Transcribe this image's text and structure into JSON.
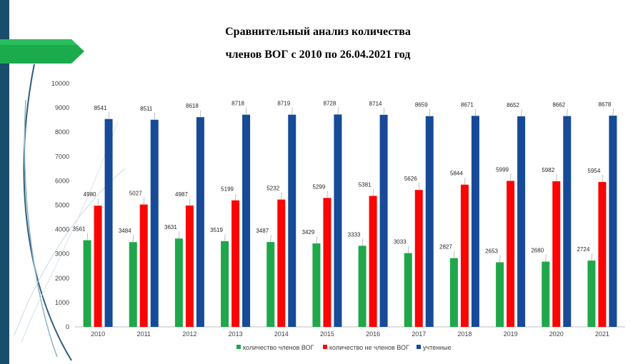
{
  "title_line1": "Сравнительный анализ количества",
  "title_line2": "членов ВОГ с 2010 по 26.04.2021 год",
  "colors": {
    "green": "#1fa74a",
    "red": "#fb0404",
    "blue": "#174a97",
    "accent_bar": "#1a4d6b",
    "accent_arrow": "#1bab4d"
  },
  "chart_data": {
    "type": "bar",
    "categories": [
      "2010",
      "2011",
      "2012",
      "2013",
      "2014",
      "2015",
      "2016",
      "2017",
      "2018",
      "2019",
      "2020",
      "2021"
    ],
    "series": [
      {
        "name": "количество членов ВОГ",
        "color": "#1fa74a",
        "values": [
          3561,
          3484,
          3631,
          3519,
          3487,
          3429,
          3333,
          3033,
          2827,
          2653,
          2680,
          2724
        ]
      },
      {
        "name": "количество не членов ВОГ",
        "color": "#fb0404",
        "values": [
          4980,
          5027,
          4987,
          5199,
          5232,
          5299,
          5381,
          5626,
          5844,
          5999,
          5982,
          5954
        ]
      },
      {
        "name": "учтенные",
        "color": "#174a97",
        "values": [
          8541,
          8511,
          8618,
          8718,
          8719,
          8728,
          8714,
          8659,
          8671,
          8652,
          8662,
          8678
        ]
      }
    ],
    "ylim": [
      0,
      10000
    ],
    "yticks": [
      "0",
      "1000",
      "2000",
      "3000",
      "4000",
      "5000",
      "6000",
      "7000",
      "8000",
      "9000",
      "10000"
    ],
    "grid": false,
    "legend_position": "bottom"
  }
}
